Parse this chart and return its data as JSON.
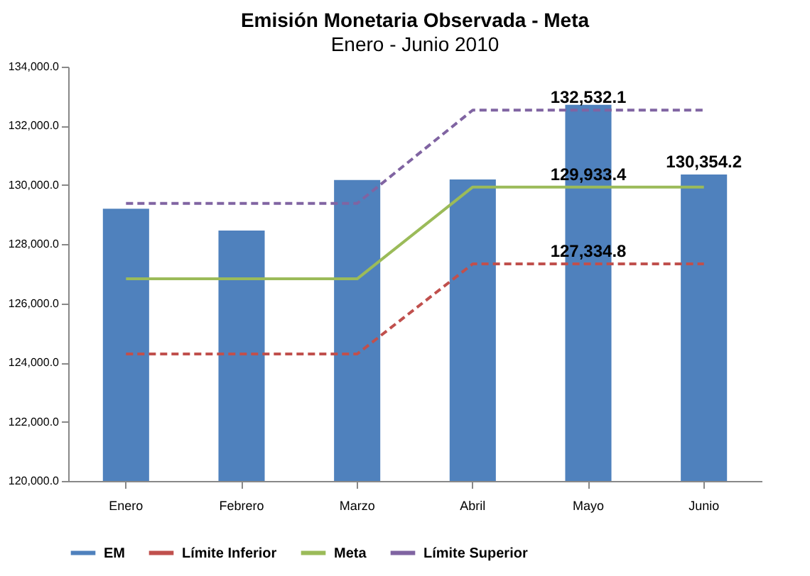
{
  "chart_data": {
    "type": "bar",
    "title": "Emisión Monetaria Observada - Meta",
    "subtitle": "Enero - Junio 2010",
    "categories": [
      "Enero",
      "Febrero",
      "Marzo",
      "Abril",
      "Mayo",
      "Junio"
    ],
    "series": [
      {
        "name": "EM",
        "color": "#4f81bd",
        "values": [
          129200,
          128460,
          130170,
          130190,
          132710,
          130354.2
        ],
        "value_labels": [
          null,
          null,
          null,
          null,
          null,
          "130,354.2"
        ]
      },
      {
        "name": "Límite Inferior",
        "type": "line",
        "color": "#c0504d",
        "line_style": "dashed",
        "values": [
          124290,
          124290,
          124290,
          127334.8,
          127334.8,
          127334.8
        ],
        "value_labels": [
          null,
          null,
          null,
          null,
          "127,334.8",
          null
        ]
      },
      {
        "name": "Meta",
        "type": "line",
        "color": "#9bbb59",
        "line_style": "solid",
        "values": [
          126830,
          126830,
          126830,
          129933.4,
          129933.4,
          129933.4
        ],
        "value_labels": [
          null,
          null,
          null,
          null,
          "129,933.4",
          null
        ]
      },
      {
        "name": "Límite Superior",
        "type": "line",
        "color": "#8064a2",
        "line_style": "dashed",
        "values": [
          129380,
          129380,
          129380,
          132532.1,
          132532.1,
          132532.1
        ],
        "value_labels": [
          null,
          null,
          null,
          null,
          "132,532.1",
          null
        ]
      }
    ],
    "ylim": [
      120000,
      134000
    ],
    "yticks": [
      {
        "value": 120000,
        "label": "120,000.0"
      },
      {
        "value": 122000,
        "label": "122,000.0"
      },
      {
        "value": 124000,
        "label": "124,000.0"
      },
      {
        "value": 126000,
        "label": "126,000.0"
      },
      {
        "value": 128000,
        "label": "128,000.0"
      },
      {
        "value": 130000,
        "label": "130,000.0"
      },
      {
        "value": 132000,
        "label": "132,000.0"
      },
      {
        "value": 134000,
        "label": "134,000.0"
      }
    ],
    "grid": false,
    "legend": "bottom",
    "marker": "none"
  }
}
